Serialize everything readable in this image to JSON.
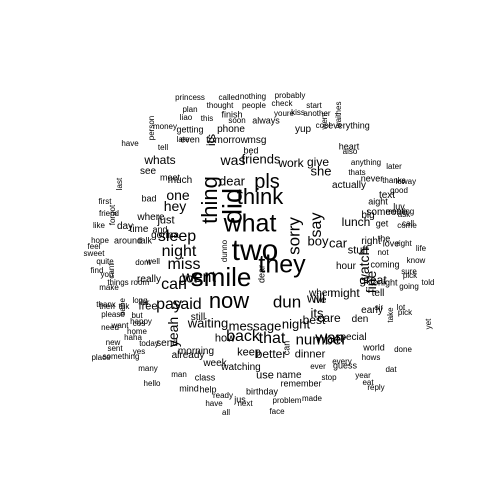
{
  "word_cloud": {
    "text_color": "#000000",
    "background_color": "#ffffff",
    "words": [
      "princess",
      "called",
      "nothing",
      "probably",
      "plan",
      "thought",
      "people",
      "check",
      "start",
      "liao",
      "this",
      "soon",
      "youre",
      "another",
      "kiss",
      "went",
      "hes",
      "money",
      "finish",
      "getting",
      "phone",
      "always",
      "cool",
      "wait",
      "person",
      "late",
      "even",
      "tomorrow",
      "msg",
      "yup",
      "everything",
      "heart",
      "also",
      "have",
      "tell",
      "its",
      "whats",
      "was",
      "friends",
      "work",
      "give",
      "anything",
      "later",
      "thats",
      "see",
      "pls",
      "dear",
      "she",
      "actually",
      "never",
      "thanks",
      "good",
      "lor",
      "way",
      "last",
      "first",
      "friend",
      "bad",
      "meet",
      "much",
      "one",
      "hey",
      "text",
      "luv",
      "meeting",
      "forgot",
      "where",
      "thing",
      "did",
      "what",
      "think",
      "sorry",
      "say",
      "big",
      "aight",
      "someone",
      "ask",
      "come",
      "just",
      "get",
      "call",
      "like",
      "day",
      "gonna",
      "sleep",
      "lunch",
      "hope",
      "feel",
      "sweet",
      "quite",
      "around",
      "talk",
      "time",
      "and",
      "night",
      "dunno",
      "boy",
      "car",
      "stuff",
      "the",
      "not",
      "right",
      "right",
      "love",
      "life",
      "know",
      "cant",
      "make",
      "miss",
      "went",
      "smile",
      "two",
      "they",
      "hour",
      "watch",
      "coming",
      "sure",
      "you",
      "well",
      "will",
      "can",
      "dont",
      "its",
      "great",
      "tonight",
      "pick",
      "told",
      "find",
      "things",
      "room",
      "really",
      "when",
      "tell",
      "going",
      "sir",
      "take",
      "pick",
      "then",
      "thanx",
      "thk",
      "long",
      "free",
      "said",
      "got",
      "now",
      "dun",
      "best",
      "ive",
      "care",
      "might",
      "den",
      "fine",
      "early",
      "lot",
      "yet",
      "please",
      "want",
      "cos",
      "home",
      "need",
      "but",
      "happy",
      "babe",
      "pay",
      "waiting",
      "message",
      "night",
      "number",
      "lar",
      "yeah",
      "still",
      "how",
      "back",
      "that",
      "wan",
      "special",
      "world",
      "done",
      "new",
      "haha",
      "sent",
      "yes",
      "today",
      "send",
      "already",
      "morning",
      "week",
      "keep",
      "better",
      "dinner",
      "guess",
      "ever",
      "every",
      "hows",
      "dat",
      "place",
      "something",
      "many",
      "man",
      "class",
      "watching",
      "use",
      "name",
      "remember",
      "stop",
      "year",
      "eat",
      "reply",
      "hello",
      "mind",
      "help",
      "ready",
      "birthday",
      "jus",
      "problem",
      "made",
      "have",
      "next",
      "face",
      "all",
      "bed",
      "dear",
      "can"
    ]
  }
}
